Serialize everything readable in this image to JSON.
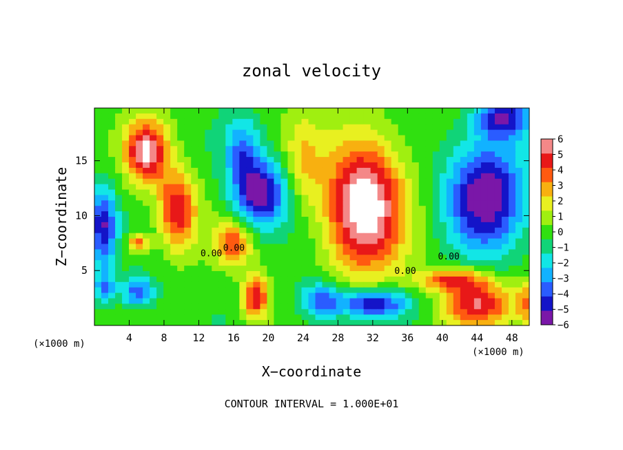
{
  "chart_data": {
    "type": "heatmap",
    "title": "zonal velocity",
    "xlabel": "X−coordinate",
    "ylabel": "Z−coordinate",
    "x_unit": "(×1000 m)",
    "y_unit": "(×1000 m)",
    "footer": "CONTOUR INTERVAL = 1.000E+01",
    "xlim": [
      0,
      50
    ],
    "ylim": [
      0,
      19.8
    ],
    "x_ticks": [
      "4",
      "8",
      "12",
      "16",
      "20",
      "24",
      "28",
      "32",
      "36",
      "40",
      "44",
      "48"
    ],
    "y_ticks": [
      "5",
      "10",
      "15"
    ],
    "colorbar": {
      "range": [
        -6,
        6
      ],
      "ticks": [
        "6",
        "5",
        "4",
        "3",
        "2",
        "1",
        "0",
        "−1",
        "−2",
        "−3",
        "−4",
        "−5",
        "−6"
      ],
      "stops": [
        "#7a17a8",
        "#1414c8",
        "#2a5cff",
        "#12b2ff",
        "#12e6e6",
        "#10d478",
        "#30e010",
        "#a0ef10",
        "#e8f020",
        "#f8b010",
        "#ff5a10",
        "#e81818",
        "#f48888"
      ]
    },
    "contour_labels": [
      {
        "text": "0.00",
        "x": 12.2,
        "z": 6.3
      },
      {
        "text": "0.00",
        "x": 14.8,
        "z": 6.8
      },
      {
        "text": "0.00",
        "x": 34.5,
        "z": 4.7
      },
      {
        "text": "0.00",
        "x": 39.5,
        "z": 6.0
      }
    ],
    "features": [
      {
        "u": 6,
        "x": 6,
        "z": 15.8,
        "sx": 2.4,
        "sz": 2.8
      },
      {
        "u": 5,
        "x": 9.5,
        "z": 10.5,
        "sx": 2.2,
        "sz": 3.5
      },
      {
        "u": 4,
        "x": 5,
        "z": 7.5,
        "sx": 1.2,
        "sz": 0.8
      },
      {
        "u": -5,
        "x": 1,
        "z": 9,
        "sx": 1.5,
        "sz": 3.5
      },
      {
        "u": -4,
        "x": 5,
        "z": 3,
        "sx": 2,
        "sz": 1.4
      },
      {
        "u": -3,
        "x": 1.2,
        "z": 3.5,
        "sx": 1.2,
        "sz": 1.5
      },
      {
        "u": -6,
        "x": 19,
        "z": 12,
        "sx": 3,
        "sz": 3
      },
      {
        "u": -3,
        "x": 17,
        "z": 16,
        "sx": 2,
        "sz": 3
      },
      {
        "u": 4,
        "x": 16,
        "z": 7.5,
        "sx": 2,
        "sz": 2
      },
      {
        "u": 5,
        "x": 18.5,
        "z": 2.5,
        "sx": 1.5,
        "sz": 2
      },
      {
        "u": 7,
        "x": 31,
        "z": 11,
        "sx": 4.5,
        "sz": 6
      },
      {
        "u": -5,
        "x": 32,
        "z": 2,
        "sx": 4,
        "sz": 1.3
      },
      {
        "u": -4,
        "x": 26,
        "z": 2.2,
        "sx": 2.5,
        "sz": 1.8
      },
      {
        "u": -6,
        "x": 45,
        "z": 12,
        "sx": 4.5,
        "sz": 5
      },
      {
        "u": -5,
        "x": 47,
        "z": 19,
        "sx": 3,
        "sz": 2
      },
      {
        "u": 5,
        "x": 44,
        "z": 2,
        "sx": 4,
        "sz": 2
      },
      {
        "u": 4,
        "x": 41,
        "z": 4.2,
        "sx": 4,
        "sz": 1
      },
      {
        "u": 3,
        "x": 49.5,
        "z": 2,
        "sx": 1,
        "sz": 2
      },
      {
        "u": 2,
        "x": 24,
        "z": 15,
        "sx": 2,
        "sz": 4
      }
    ]
  }
}
